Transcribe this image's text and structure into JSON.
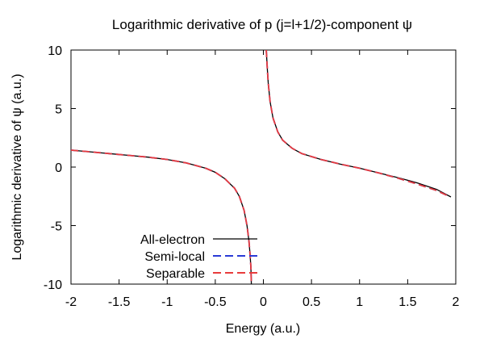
{
  "chart_data": {
    "type": "line",
    "title": "Logarithmic derivative of p (j=l+1/2)-component ψ",
    "xlabel": "Energy (a.u.)",
    "ylabel": "Logarithmic derivative of ψ (a.u.)",
    "xlim": [
      -2,
      2
    ],
    "ylim": [
      -10,
      10
    ],
    "x_ticks": [
      -2,
      -1.5,
      -1,
      -0.5,
      0,
      0.5,
      1,
      1.5,
      2
    ],
    "y_ticks": [
      -10,
      -5,
      0,
      5,
      10
    ],
    "x_tick_labels": [
      "-2",
      "-1.5",
      "-1",
      "-0.5",
      "0",
      "0.5",
      "1",
      "1.5",
      "2"
    ],
    "y_tick_labels": [
      "-10",
      "-5",
      "0",
      "5",
      "10"
    ],
    "grid": false,
    "legend_position": "bottom-left",
    "series": [
      {
        "name": "All-electron",
        "color": "#000000",
        "style": "solid",
        "segments": [
          [
            [
              -2.0,
              1.45
            ],
            [
              -1.8,
              1.3
            ],
            [
              -1.6,
              1.15
            ],
            [
              -1.4,
              1.0
            ],
            [
              -1.2,
              0.85
            ],
            [
              -1.0,
              0.65
            ],
            [
              -0.8,
              0.35
            ],
            [
              -0.6,
              -0.1
            ],
            [
              -0.5,
              -0.45
            ],
            [
              -0.4,
              -1.0
            ],
            [
              -0.3,
              -1.8
            ],
            [
              -0.25,
              -2.5
            ],
            [
              -0.2,
              -3.7
            ],
            [
              -0.17,
              -5.0
            ],
            [
              -0.15,
              -6.3
            ],
            [
              -0.14,
              -7.3
            ],
            [
              -0.13,
              -8.5
            ],
            [
              -0.125,
              -10.0
            ]
          ],
          [
            [
              0.03,
              10.0
            ],
            [
              0.04,
              8.5
            ],
            [
              0.05,
              7.2
            ],
            [
              0.07,
              5.6
            ],
            [
              0.1,
              4.2
            ],
            [
              0.15,
              3.0
            ],
            [
              0.2,
              2.3
            ],
            [
              0.3,
              1.6
            ],
            [
              0.4,
              1.15
            ],
            [
              0.6,
              0.65
            ],
            [
              0.8,
              0.25
            ],
            [
              1.0,
              -0.1
            ],
            [
              1.2,
              -0.5
            ],
            [
              1.4,
              -0.9
            ],
            [
              1.6,
              -1.35
            ],
            [
              1.8,
              -1.9
            ],
            [
              1.95,
              -2.55
            ]
          ]
        ]
      },
      {
        "name": "Semi-local",
        "color": "#2a3bd6",
        "style": "dashed",
        "segments": [
          [
            [
              -2.0,
              1.45
            ],
            [
              -1.8,
              1.3
            ],
            [
              -1.6,
              1.15
            ],
            [
              -1.4,
              1.0
            ],
            [
              -1.2,
              0.85
            ],
            [
              -1.0,
              0.65
            ],
            [
              -0.8,
              0.35
            ],
            [
              -0.6,
              -0.1
            ],
            [
              -0.5,
              -0.45
            ],
            [
              -0.4,
              -1.0
            ],
            [
              -0.3,
              -1.8
            ],
            [
              -0.25,
              -2.5
            ],
            [
              -0.2,
              -3.7
            ],
            [
              -0.17,
              -5.0
            ],
            [
              -0.15,
              -6.3
            ],
            [
              -0.14,
              -7.3
            ],
            [
              -0.13,
              -8.5
            ],
            [
              -0.125,
              -10.0
            ]
          ],
          [
            [
              0.03,
              10.0
            ],
            [
              0.04,
              8.5
            ],
            [
              0.05,
              7.2
            ],
            [
              0.07,
              5.6
            ],
            [
              0.1,
              4.2
            ],
            [
              0.15,
              3.0
            ],
            [
              0.2,
              2.3
            ],
            [
              0.3,
              1.6
            ],
            [
              0.4,
              1.15
            ],
            [
              0.6,
              0.65
            ],
            [
              0.8,
              0.25
            ],
            [
              1.0,
              -0.1
            ],
            [
              1.2,
              -0.5
            ],
            [
              1.4,
              -0.95
            ],
            [
              1.6,
              -1.45
            ],
            [
              1.8,
              -2.0
            ],
            [
              1.93,
              -2.5
            ]
          ]
        ]
      },
      {
        "name": "Separable",
        "color": "#e83c3c",
        "style": "dashed",
        "segments": [
          [
            [
              -2.0,
              1.45
            ],
            [
              -1.8,
              1.3
            ],
            [
              -1.6,
              1.15
            ],
            [
              -1.4,
              1.0
            ],
            [
              -1.2,
              0.85
            ],
            [
              -1.0,
              0.65
            ],
            [
              -0.8,
              0.35
            ],
            [
              -0.6,
              -0.1
            ],
            [
              -0.5,
              -0.45
            ],
            [
              -0.4,
              -1.0
            ],
            [
              -0.3,
              -1.8
            ],
            [
              -0.25,
              -2.5
            ],
            [
              -0.2,
              -3.7
            ],
            [
              -0.17,
              -5.0
            ],
            [
              -0.15,
              -6.3
            ],
            [
              -0.14,
              -7.3
            ],
            [
              -0.13,
              -8.5
            ],
            [
              -0.125,
              -10.0
            ]
          ],
          [
            [
              0.03,
              10.0
            ],
            [
              0.04,
              8.5
            ],
            [
              0.05,
              7.2
            ],
            [
              0.07,
              5.6
            ],
            [
              0.1,
              4.2
            ],
            [
              0.15,
              3.0
            ],
            [
              0.2,
              2.3
            ],
            [
              0.3,
              1.6
            ],
            [
              0.4,
              1.15
            ],
            [
              0.6,
              0.65
            ],
            [
              0.8,
              0.25
            ],
            [
              1.0,
              -0.1
            ],
            [
              1.2,
              -0.5
            ],
            [
              1.4,
              -0.95
            ],
            [
              1.6,
              -1.45
            ],
            [
              1.8,
              -2.0
            ],
            [
              1.93,
              -2.5
            ]
          ]
        ]
      }
    ]
  }
}
